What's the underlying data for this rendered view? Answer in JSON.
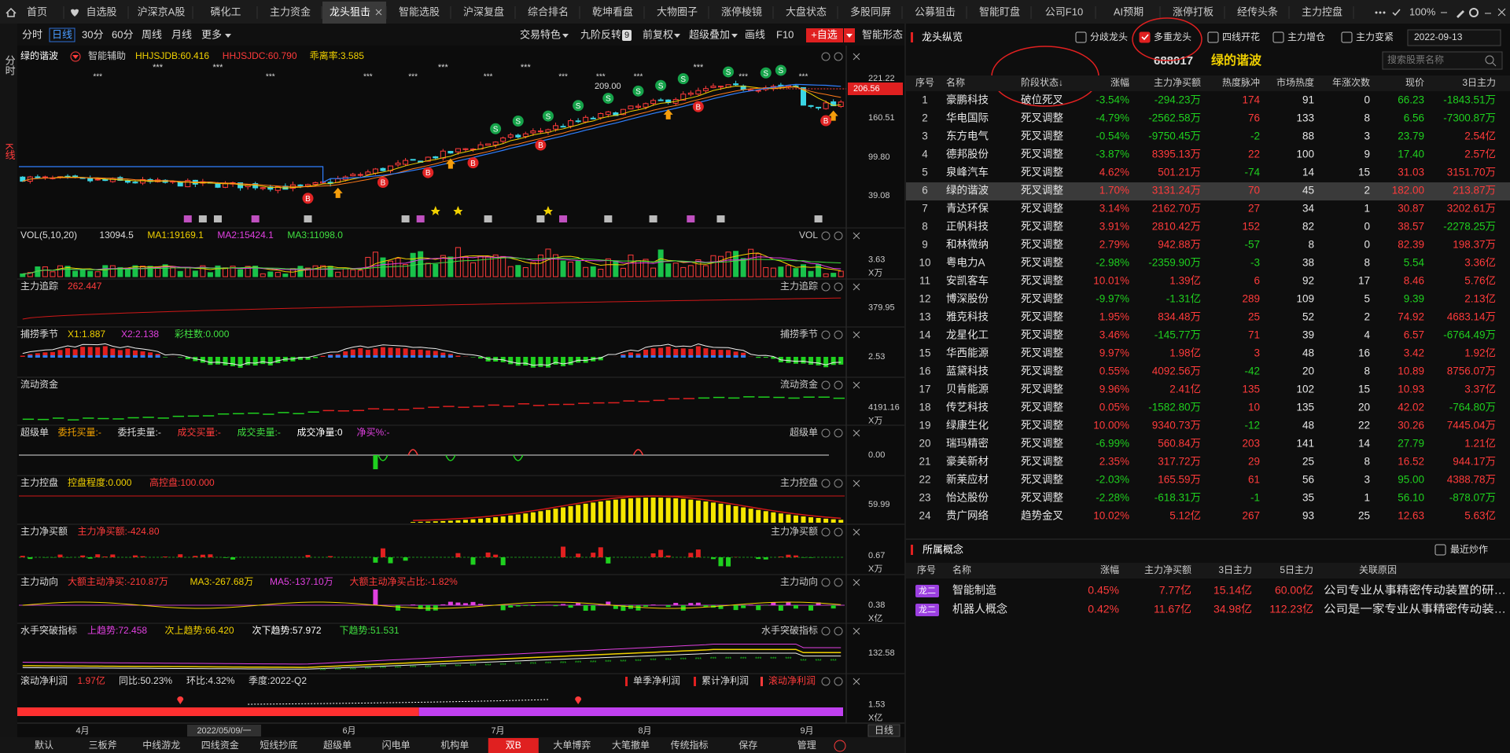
{
  "tabs": [
    "首页",
    "自选股",
    "沪深京A股",
    "磷化工",
    "主力资金",
    "龙头狙击",
    "智能选股",
    "沪深复盘",
    "综合排名",
    "乾坤看盘",
    "大物圈子",
    "涨停棱镜",
    "大盘状态",
    "多股同屏",
    "公募狙击",
    "智能盯盘",
    "公司F10",
    "AI预期",
    "涨停打板",
    "经传头条",
    "主力控盘"
  ],
  "zoom": "100%",
  "side_tabs": [
    "分时",
    "K线"
  ],
  "periods": [
    "分时",
    "日线",
    "30分",
    "60分",
    "周线",
    "月线",
    "更多"
  ],
  "tools": [
    "交易特色",
    "九阶反转",
    "前复权",
    "超级叠加",
    "画线",
    "F10"
  ],
  "badge": "9",
  "add_watch": "+自选",
  "smart_shape": "智能形态",
  "main": {
    "name": "绿的谐波",
    "assist": "智能辅助",
    "items": [
      {
        "text": "HHJSJDB:60.416",
        "color": "#f0d000"
      },
      {
        "text": "HHJSJDC:60.790",
        "color": "#ff3b3b"
      },
      {
        "text": "乖离率:3.585",
        "color": "#f0d000"
      }
    ],
    "axis": [
      "221.22",
      "206.56",
      "160.51",
      "99.80",
      "39.08"
    ],
    "peak": "209.00",
    "marks": {
      "sell": "S",
      "buy": "B",
      "stars": "***"
    }
  },
  "panels": [
    {
      "title": "VOL(5,10,20)",
      "items": [
        {
          "text": "13094.5",
          "color": "#dddddd"
        },
        {
          "text": "MA1:19169.1",
          "color": "#f0d000"
        },
        {
          "text": "MA2:15424.1",
          "color": "#e040e0"
        },
        {
          "text": "MA3:11098.0",
          "color": "#40e040"
        }
      ],
      "right": [
        "VOL"
      ],
      "axis": [
        "3.63",
        "X万"
      ]
    },
    {
      "title": "主力追踪",
      "items": [
        {
          "text": "262.447",
          "color": "#ff3b3b"
        }
      ],
      "right": [
        "主力追踪"
      ],
      "axis": [
        "379.95"
      ]
    },
    {
      "title": "捕捞季节",
      "items": [
        {
          "text": "X1:1.887",
          "color": "#f0d000"
        },
        {
          "text": "X2:2.138",
          "color": "#e040e0"
        },
        {
          "text": "彩柱数:0.000",
          "color": "#40e040"
        }
      ],
      "right": [
        "捕捞季节"
      ],
      "axis": [
        "2.53"
      ]
    },
    {
      "title": "流动资金",
      "items": [],
      "right": [
        "流动资金"
      ],
      "axis": [
        "4191.16",
        "X万"
      ]
    },
    {
      "title": "超级单",
      "items": [
        {
          "text": "委托买量:-",
          "color": "#f0a000"
        },
        {
          "text": "委托卖量:-",
          "color": "#dddddd"
        },
        {
          "text": "成交买量:-",
          "color": "#ff3b3b"
        },
        {
          "text": "成交卖量:-",
          "color": "#40e040"
        },
        {
          "text": "成交净量:0",
          "color": "#ffffff"
        },
        {
          "text": "净买%:-",
          "color": "#e040e0"
        }
      ],
      "right": [
        "超级单"
      ],
      "axis": [
        "0.00"
      ]
    },
    {
      "title": "主力控盘",
      "items": [
        {
          "text": "控盘程度:0.000",
          "color": "#f0d000"
        },
        {
          "text": "高控盘:100.000",
          "color": "#ff3b3b"
        }
      ],
      "right": [
        "主力控盘"
      ],
      "axis": [
        "59.99"
      ]
    },
    {
      "title": "主力净买额",
      "items": [
        {
          "text": "主力净买额:-424.80",
          "color": "#ff3b3b"
        }
      ],
      "right": [
        "主力净买额"
      ],
      "axis": [
        "0.67",
        "X万"
      ]
    },
    {
      "title": "主力动向",
      "items": [
        {
          "text": "大额主动净买:-210.87万",
          "color": "#ff3b3b"
        },
        {
          "text": "MA3:-267.68万",
          "color": "#f0d000"
        },
        {
          "text": "MA5:-137.10万",
          "color": "#e040e0"
        },
        {
          "text": "大额主动净买占比:-1.82%",
          "color": "#ff3b3b"
        }
      ],
      "right": [
        "主力动向"
      ],
      "axis": [
        "0.38",
        "X亿"
      ]
    },
    {
      "title": "水手突破指标",
      "items": [
        {
          "text": "上趋势:72.458",
          "color": "#e040e0"
        },
        {
          "text": "次上趋势:66.420",
          "color": "#f0d000"
        },
        {
          "text": "次下趋势:57.972",
          "color": "#ffffff"
        },
        {
          "text": "下趋势:51.531",
          "color": "#40e040"
        }
      ],
      "right": [
        "水手突破指标"
      ],
      "axis": [
        "132.58"
      ]
    },
    {
      "title": "滚动净利润",
      "items": [
        {
          "text": "1.97亿",
          "color": "#ff3b3b"
        },
        {
          "text": "同比:50.23%",
          "color": "#dddddd"
        },
        {
          "text": "环比:4.32%",
          "color": "#dddddd"
        },
        {
          "text": "季度:2022-Q2",
          "color": "#dddddd"
        }
      ],
      "right": [
        "单季净利润",
        "累计净利润",
        "滚动净利润"
      ],
      "axis": [
        "1.53",
        "X亿"
      ]
    }
  ],
  "dates": [
    "4月",
    "2022/05/09/一",
    "6月",
    "7月",
    "8月",
    "9月"
  ],
  "period_label": "日线",
  "bottom_tabs": [
    "默认",
    "三板斧",
    "中线游龙",
    "四线资金",
    "短线抄底",
    "超级单",
    "闪电单",
    "机构单",
    "双B",
    "大单博弈",
    "大笔撤单",
    "传统指标",
    "保存",
    "管理"
  ],
  "right": {
    "title": "龙头纵览",
    "filters": [
      {
        "label": "分歧龙头",
        "checked": false
      },
      {
        "label": "多重龙头",
        "checked": true
      },
      {
        "label": "四线开花",
        "checked": false
      },
      {
        "label": "主力增仓",
        "checked": false
      },
      {
        "label": "主力变紧",
        "checked": false
      }
    ],
    "date": "2022-09-13",
    "code": "688017",
    "name": "绿的谐波",
    "search": "搜索股票名称",
    "columns": [
      "序号",
      "名称",
      "阶段状态↓",
      "涨幅",
      "主力净买额",
      "热度脉冲",
      "市场热度",
      "年涨次数",
      "现价",
      "3日主力"
    ],
    "rows": [
      [
        "1",
        "豪鹏科技",
        "破位死叉",
        "-3.54%",
        "-294.23万",
        "174",
        "91",
        "0",
        "66.23",
        "-1843.51万"
      ],
      [
        "2",
        "华电国际",
        "死叉调整",
        "-4.79%",
        "-2562.58万",
        "76",
        "133",
        "8",
        "6.56",
        "-7300.87万"
      ],
      [
        "3",
        "东方电气",
        "死叉调整",
        "-0.54%",
        "-9750.45万",
        "-2",
        "88",
        "3",
        "23.79",
        "2.54亿"
      ],
      [
        "4",
        "德邦股份",
        "死叉调整",
        "-3.87%",
        "8395.13万",
        "22",
        "100",
        "9",
        "17.40",
        "2.57亿"
      ],
      [
        "5",
        "泉峰汽车",
        "死叉调整",
        "4.62%",
        "501.21万",
        "-74",
        "14",
        "15",
        "31.03",
        "3151.70万"
      ],
      [
        "6",
        "绿的谐波",
        "死叉调整",
        "1.70%",
        "3131.24万",
        "70",
        "45",
        "2",
        "182.00",
        "213.87万"
      ],
      [
        "7",
        "青达环保",
        "死叉调整",
        "3.14%",
        "2162.70万",
        "27",
        "34",
        "1",
        "30.87",
        "3202.61万"
      ],
      [
        "8",
        "正帆科技",
        "死叉调整",
        "3.91%",
        "2810.42万",
        "152",
        "82",
        "0",
        "38.57",
        "-2278.25万"
      ],
      [
        "9",
        "和林微纳",
        "死叉调整",
        "2.79%",
        "942.88万",
        "-57",
        "8",
        "0",
        "82.39",
        "198.37万"
      ],
      [
        "10",
        "粤电力A",
        "死叉调整",
        "-2.98%",
        "-2359.90万",
        "-3",
        "38",
        "8",
        "5.54",
        "3.36亿"
      ],
      [
        "11",
        "安凯客车",
        "死叉调整",
        "10.01%",
        "1.39亿",
        "6",
        "92",
        "17",
        "8.46",
        "5.76亿"
      ],
      [
        "12",
        "博深股份",
        "死叉调整",
        "-9.97%",
        "-1.31亿",
        "289",
        "109",
        "5",
        "9.39",
        "2.13亿"
      ],
      [
        "13",
        "雅克科技",
        "死叉调整",
        "1.95%",
        "834.48万",
        "25",
        "52",
        "2",
        "74.92",
        "4683.14万"
      ],
      [
        "14",
        "龙星化工",
        "死叉调整",
        "3.46%",
        "-145.77万",
        "71",
        "39",
        "4",
        "6.57",
        "-6764.49万"
      ],
      [
        "15",
        "华西能源",
        "死叉调整",
        "9.97%",
        "1.98亿",
        "3",
        "48",
        "16",
        "3.42",
        "1.92亿"
      ],
      [
        "16",
        "蓝黛科技",
        "死叉调整",
        "0.55%",
        "4092.56万",
        "-42",
        "20",
        "8",
        "10.89",
        "8756.07万"
      ],
      [
        "17",
        "贝肯能源",
        "死叉调整",
        "9.96%",
        "2.41亿",
        "135",
        "102",
        "15",
        "10.93",
        "3.37亿"
      ],
      [
        "18",
        "传艺科技",
        "死叉调整",
        "0.05%",
        "-1582.80万",
        "10",
        "135",
        "20",
        "42.02",
        "-764.80万"
      ],
      [
        "19",
        "绿康生化",
        "死叉调整",
        "10.00%",
        "9340.73万",
        "-12",
        "48",
        "22",
        "30.26",
        "7445.04万"
      ],
      [
        "20",
        "瑞玛精密",
        "死叉调整",
        "-6.99%",
        "560.84万",
        "203",
        "141",
        "14",
        "27.79",
        "1.21亿"
      ],
      [
        "21",
        "豪美新材",
        "死叉调整",
        "2.35%",
        "317.72万",
        "29",
        "25",
        "8",
        "16.52",
        "944.17万"
      ],
      [
        "22",
        "新莱应材",
        "死叉调整",
        "-2.03%",
        "165.59万",
        "61",
        "56",
        "3",
        "95.00",
        "4388.78万"
      ],
      [
        "23",
        "怡达股份",
        "死叉调整",
        "-2.28%",
        "-618.31万",
        "-1",
        "35",
        "1",
        "56.10",
        "-878.07万"
      ],
      [
        "24",
        "贵广网络",
        "趋势金叉",
        "10.02%",
        "5.12亿",
        "267",
        "93",
        "25",
        "12.63",
        "5.63亿"
      ]
    ]
  },
  "concepts": {
    "title": "所属概念",
    "toggle": "最近炒作",
    "columns": [
      "序号",
      "名称",
      "涨幅",
      "主力净买额",
      "3日主力",
      "5日主力",
      "关联原因"
    ],
    "rows": [
      [
        "龙二",
        "智能制造",
        "0.45%",
        "7.77亿",
        "15.14亿",
        "60.00亿",
        "公司专业从事精密传动装置的研…"
      ],
      [
        "龙二",
        "机器人概念",
        "0.42%",
        "11.67亿",
        "34.98亿",
        "112.23亿",
        "公司是一家专业从事精密传动装…"
      ]
    ]
  }
}
